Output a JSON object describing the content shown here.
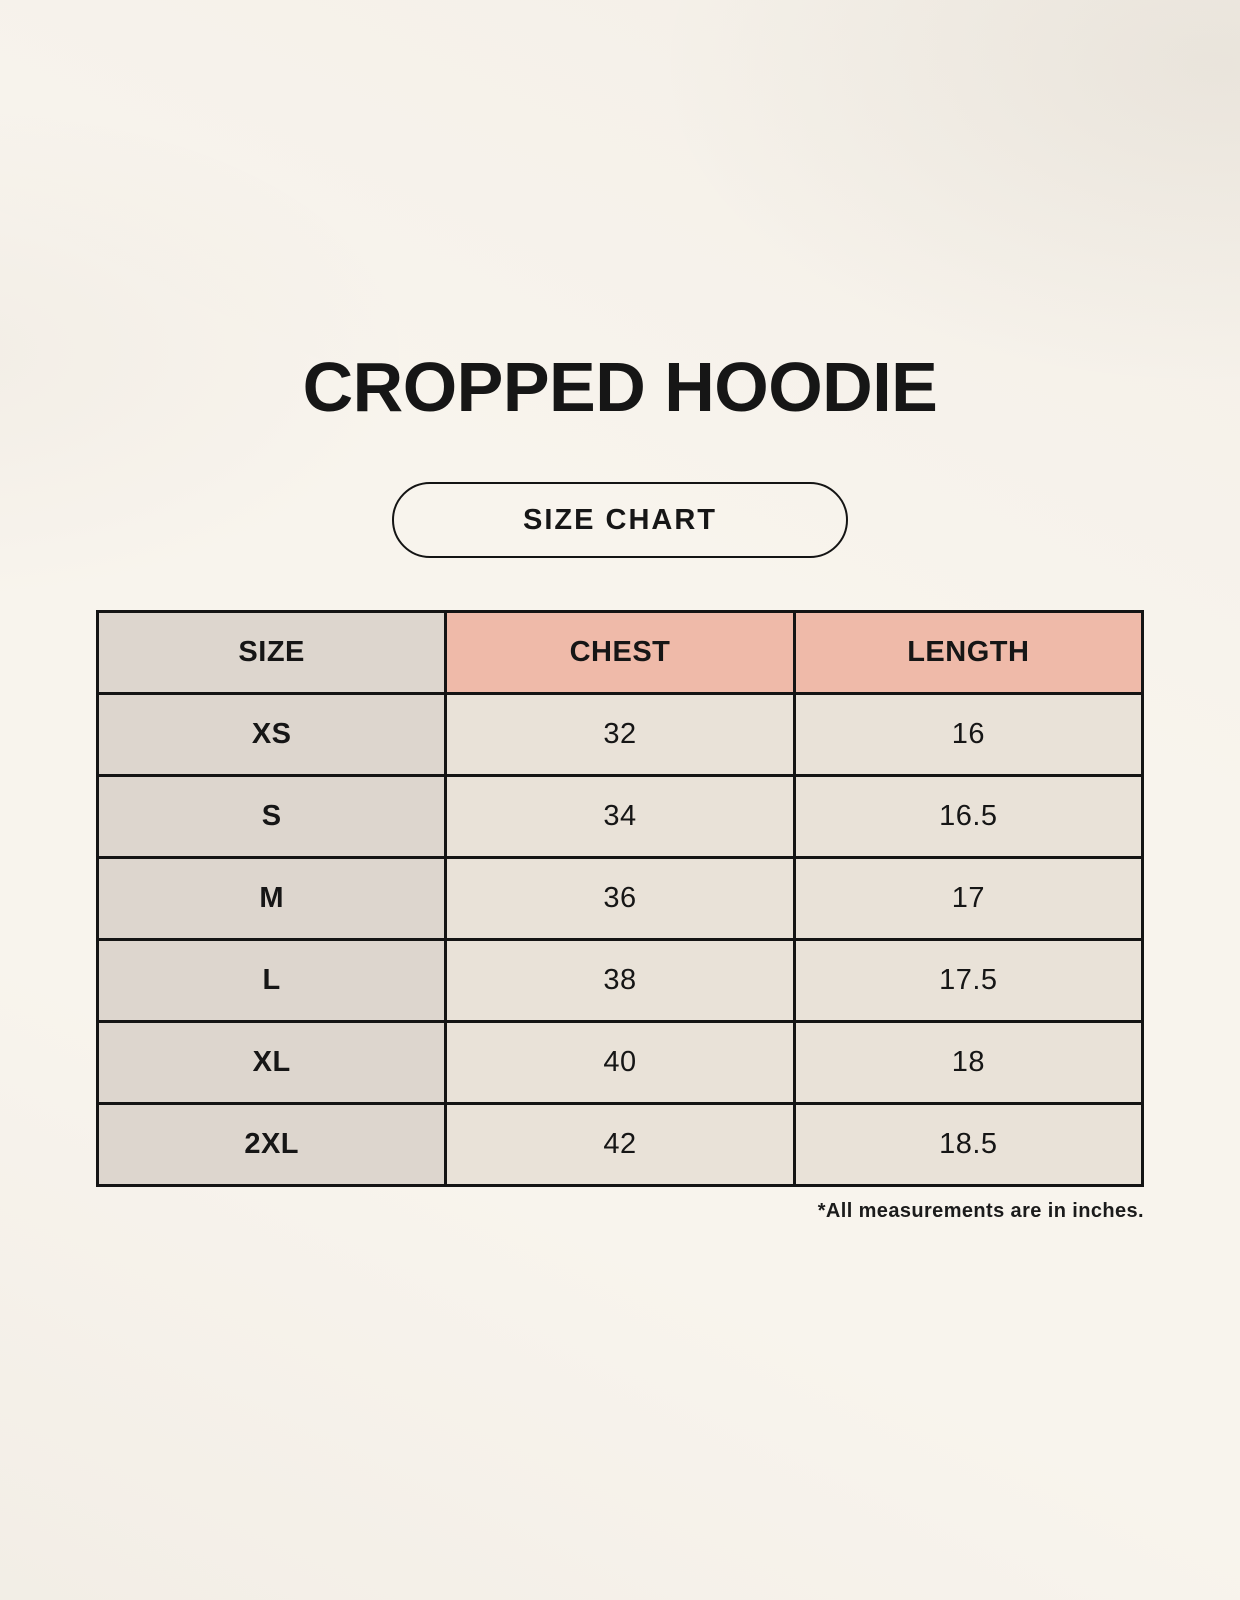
{
  "page": {
    "title": "CROPPED HOODIE",
    "size_chart_label": "SIZE CHART",
    "footnote": "*All measurements are in inches."
  },
  "table": {
    "columns": [
      "SIZE",
      "CHEST",
      "LENGTH"
    ],
    "rows": [
      {
        "size": "XS",
        "chest": "32",
        "length": "16"
      },
      {
        "size": "S",
        "chest": "34",
        "length": "16.5"
      },
      {
        "size": "M",
        "chest": "36",
        "length": "17"
      },
      {
        "size": "L",
        "chest": "38",
        "length": "17.5"
      },
      {
        "size": "XL",
        "chest": "40",
        "length": "18"
      },
      {
        "size": "2XL",
        "chest": "42",
        "length": "18.5"
      }
    ]
  },
  "colors": {
    "background": "#f8f4ed",
    "header_pink": "#efbaa9",
    "size_column_gray": "#ddd6ce",
    "data_cell_cream": "#e9e2d8",
    "border_and_text": "#141414"
  },
  "chart_data": {
    "type": "table",
    "title": "CROPPED HOODIE",
    "subtitle": "SIZE CHART",
    "columns": [
      "SIZE",
      "CHEST",
      "LENGTH"
    ],
    "rows": [
      [
        "XS",
        32,
        16
      ],
      [
        "S",
        34,
        16.5
      ],
      [
        "M",
        36,
        17
      ],
      [
        "L",
        38,
        17.5
      ],
      [
        "XL",
        40,
        18
      ],
      [
        "2XL",
        42,
        18.5
      ]
    ],
    "units": "inches",
    "note": "*All measurements are in inches."
  }
}
